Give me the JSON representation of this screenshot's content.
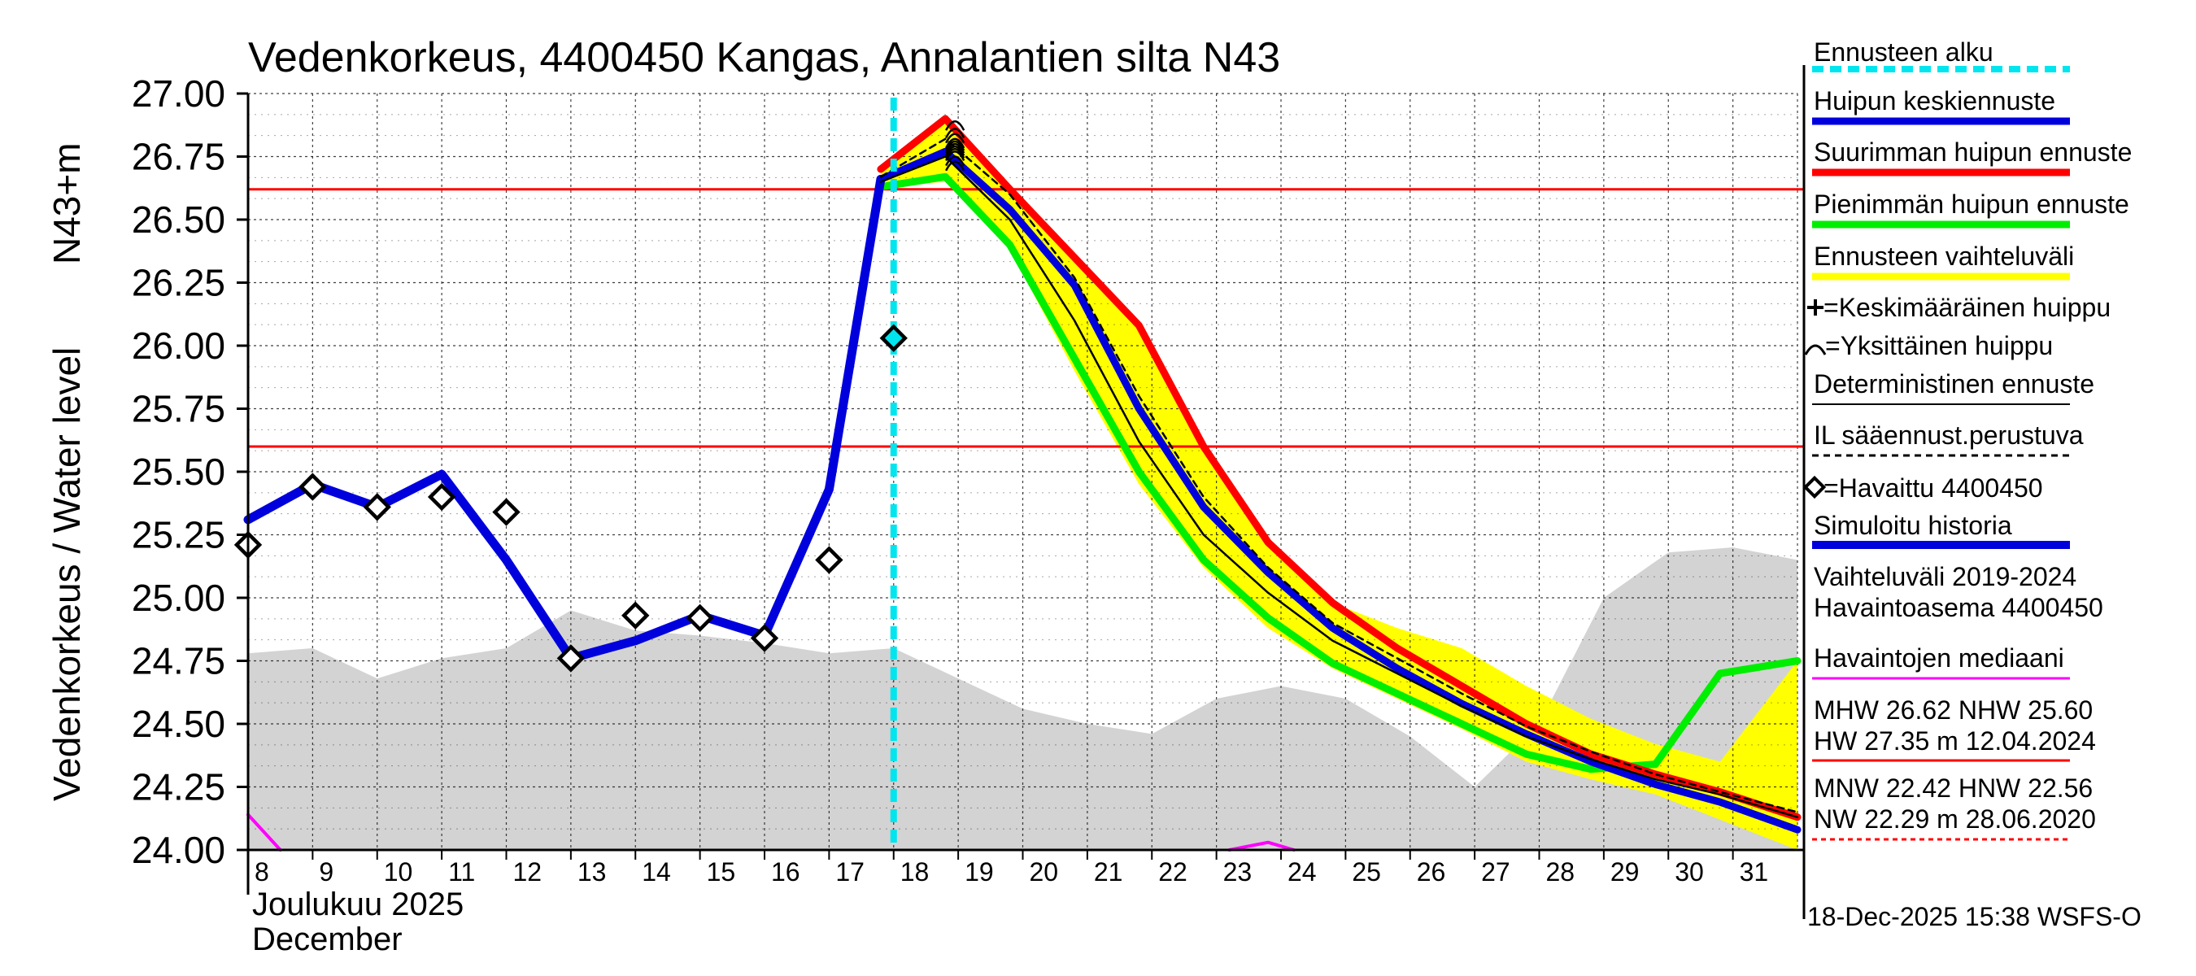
{
  "chart_data": {
    "type": "line",
    "title": "Vedenkorkeus, 4400450 Kangas, Annalantien silta N43",
    "ylabel_left": "Vedenkorkeus / Water level",
    "ylabel_right": "N43+m",
    "ylim": [
      24.0,
      27.0
    ],
    "y_ticks": [
      "27.00",
      "26.75",
      "26.50",
      "26.25",
      "26.00",
      "25.75",
      "25.50",
      "25.25",
      "25.00",
      "24.75",
      "24.50",
      "24.25",
      "24.00"
    ],
    "x_day_range": [
      8,
      32
    ],
    "x_ticks": [
      "8",
      "9",
      "10",
      "11",
      "12",
      "13",
      "14",
      "15",
      "16",
      "17",
      "18",
      "19",
      "20",
      "21",
      "22",
      "23",
      "24",
      "25",
      "26",
      "27",
      "28",
      "29",
      "30",
      "31"
    ],
    "month_label_fi": "Joulukuu  2025",
    "month_label_en": "December",
    "forecast_start_day": 18.0,
    "reference_lines": [
      {
        "name": "MHW",
        "value": 26.62,
        "color": "#ff0000"
      },
      {
        "name": "NHW",
        "value": 25.6,
        "color": "#ff0000"
      }
    ],
    "series": [
      {
        "name": "Vaihteluväli 2019-2024",
        "kind": "band",
        "color": "#d3d3d3",
        "x": [
          8,
          9,
          10,
          11,
          12,
          13,
          14,
          15,
          16,
          17,
          18,
          19,
          20,
          21,
          22,
          23,
          24,
          25,
          26,
          27,
          28,
          29,
          30,
          31,
          32
        ],
        "low": [
          24,
          24,
          24,
          24,
          24,
          24,
          24,
          24,
          24,
          24,
          24,
          24,
          24,
          24,
          24,
          24,
          24,
          24,
          24,
          24,
          24,
          24,
          24,
          24,
          24
        ],
        "high": [
          24.78,
          24.8,
          24.68,
          24.76,
          24.8,
          24.95,
          24.87,
          24.85,
          24.82,
          24.78,
          24.8,
          24.68,
          24.56,
          24.5,
          24.46,
          24.6,
          24.65,
          24.6,
          24.45,
          24.25,
          24.5,
          25.0,
          25.18,
          25.2,
          25.15
        ]
      },
      {
        "name": "Ennusteen vaihteluväli",
        "kind": "band",
        "color": "#ffff00",
        "x": [
          17.8,
          18.8,
          19.8,
          20.8,
          21.8,
          22.8,
          23.8,
          24.8,
          25.8,
          26.8,
          27.8,
          28.8,
          29.8,
          30.8,
          32
        ],
        "low": [
          26.63,
          26.65,
          26.38,
          25.9,
          25.45,
          25.12,
          24.88,
          24.72,
          24.6,
          24.48,
          24.35,
          24.28,
          24.22,
          24.12,
          24.0
        ],
        "high": [
          26.7,
          26.9,
          26.62,
          26.35,
          26.08,
          25.6,
          25.22,
          24.98,
          24.88,
          24.8,
          24.65,
          24.52,
          24.42,
          24.35,
          24.75
        ]
      },
      {
        "name": "Havaintojen mediaani",
        "kind": "line",
        "color": "#ff00ff",
        "x": [
          8,
          8.5
        ],
        "y": [
          24.14,
          24.0
        ]
      },
      {
        "name": "Havaintojen mediaani (b)",
        "kind": "line",
        "color": "#ff00ff",
        "x": [
          23.2,
          23.8,
          24.2
        ],
        "y": [
          24.0,
          24.03,
          24.0
        ]
      },
      {
        "name": "Pienimmän huipun ennuste",
        "kind": "line",
        "color": "#00ee00",
        "x": [
          17.8,
          18.8,
          19.8,
          20.8,
          21.8,
          22.8,
          23.8,
          24.8,
          25.8,
          26.8,
          27.8,
          28.8,
          29.8,
          30.8,
          32
        ],
        "y": [
          26.63,
          26.67,
          26.4,
          25.95,
          25.5,
          25.15,
          24.92,
          24.74,
          24.62,
          24.5,
          24.38,
          24.32,
          24.34,
          24.7,
          24.75
        ]
      },
      {
        "name": "Suurimman huipun ennuste",
        "kind": "line",
        "color": "#ff0000",
        "x": [
          17.8,
          18.8,
          19.8,
          20.8,
          21.8,
          22.8,
          23.8,
          24.8,
          25.8,
          26.8,
          27.8,
          28.8,
          29.8,
          30.8,
          32
        ],
        "y": [
          26.7,
          26.9,
          26.62,
          26.35,
          26.08,
          25.6,
          25.22,
          24.98,
          24.8,
          24.65,
          24.5,
          24.38,
          24.3,
          24.23,
          24.13
        ]
      },
      {
        "name": "Simuloitu historia",
        "kind": "line",
        "color": "#0000dd",
        "x": [
          8,
          9,
          10,
          11,
          12,
          13,
          14,
          15,
          16,
          17,
          17.8
        ],
        "y": [
          25.31,
          25.45,
          25.36,
          25.49,
          25.15,
          24.76,
          24.83,
          24.93,
          24.85,
          25.43,
          26.66
        ]
      },
      {
        "name": "Huipun keskiennuste",
        "kind": "line",
        "color": "#0000dd",
        "x": [
          17.8,
          18.8,
          19.8,
          20.8,
          21.8,
          22.8,
          23.8,
          24.8,
          25.8,
          26.8,
          27.8,
          28.8,
          29.8,
          30.8,
          32
        ],
        "y": [
          26.66,
          26.77,
          26.54,
          26.24,
          25.75,
          25.36,
          25.1,
          24.88,
          24.72,
          24.58,
          24.46,
          24.35,
          24.26,
          24.19,
          24.08
        ]
      },
      {
        "name": "IL sääennust.perustuva",
        "kind": "line",
        "color": "#000000",
        "dash": true,
        "x": [
          17.8,
          18.8,
          19.8,
          20.8,
          21.8,
          22.8,
          23.8,
          24.8,
          25.8,
          26.8,
          27.8,
          28.8,
          29.8,
          30.8,
          32
        ],
        "y": [
          26.67,
          26.82,
          26.6,
          26.27,
          25.8,
          25.4,
          25.12,
          24.9,
          24.76,
          24.62,
          24.49,
          24.39,
          24.3,
          24.23,
          24.15
        ]
      },
      {
        "name": "Deterministinen ennuste",
        "kind": "line",
        "color": "#000000",
        "x": [
          17.8,
          18.8,
          19.8,
          20.8,
          21.8,
          22.8,
          23.8,
          24.8,
          25.8,
          26.8,
          27.8,
          28.8,
          29.8,
          30.8,
          32
        ],
        "y": [
          26.65,
          26.75,
          26.5,
          26.1,
          25.62,
          25.25,
          25.02,
          24.83,
          24.7,
          24.57,
          24.45,
          24.36,
          24.28,
          24.22,
          24.13
        ]
      }
    ],
    "observed": {
      "name": "Havaittu 4400450",
      "x": [
        8,
        9,
        10,
        11,
        12,
        13,
        14,
        15,
        16,
        17,
        18
      ],
      "y": [
        25.21,
        25.44,
        25.36,
        25.4,
        25.34,
        24.76,
        24.93,
        24.92,
        24.84,
        25.15,
        26.03
      ]
    },
    "peaks": {
      "x": [
        18.95,
        18.95,
        18.95,
        18.95,
        18.95,
        18.95,
        18.95,
        18.95,
        18.95,
        18.95,
        18.95
      ],
      "y": [
        26.88,
        26.85,
        26.83,
        26.81,
        26.8,
        26.79,
        26.78,
        26.77,
        26.76,
        26.74,
        26.72
      ]
    }
  },
  "legend": {
    "forecast_start": "Ennusteen alku",
    "mean_peak": "Huipun keskiennuste",
    "max_peak": "Suurimman huipun ennuste",
    "min_peak": "Pienimmän huipun ennuste",
    "range": "Ennusteen vaihteluväli",
    "mean_peak_marker": "=Keskimääräinen huippu",
    "single_peak_marker": "=Yksittäinen huippu",
    "deterministic": "Deterministinen ennuste",
    "il_based": "IL sääennust.perustuva",
    "observed": "=Havaittu 4400450",
    "simulated": "Simuloitu historia",
    "range_years": "Vaihteluväli 2019-2024",
    "station": "Havaintoasema 4400450",
    "median": "Havaintojen mediaani",
    "stats_high_1": "MHW  26.62 NHW  25.60",
    "stats_high_2": "HW  27.35 m 12.04.2024",
    "stats_low_1": "MNW  22.42 HNW  22.56",
    "stats_low_2": "NW  22.29 m 28.06.2020"
  },
  "timestamp": "18-Dec-2025 15:38 WSFS-O",
  "colors": {
    "observed_band": "#d3d3d3",
    "forecast_band": "#ffff00",
    "blue": "#0000dd",
    "red": "#ff0000",
    "green": "#00ee00",
    "cyan": "#00e5ee",
    "magenta": "#ff00ff"
  }
}
